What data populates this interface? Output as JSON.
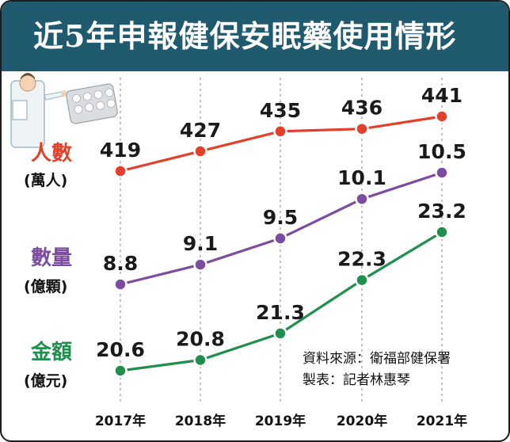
{
  "title": "近5年申報健保安眠藥使用情形",
  "chart_data": {
    "type": "line",
    "x": [
      "2017年",
      "2018年",
      "2019年",
      "2020年",
      "2021年"
    ],
    "series": [
      {
        "name": "人數",
        "unit": "(萬人)",
        "color": "#e2402a",
        "values": [
          419,
          427,
          435,
          436,
          441
        ],
        "labels": [
          "419",
          "427",
          "435",
          "436",
          "441"
        ]
      },
      {
        "name": "數量",
        "unit": "(億顆)",
        "color": "#7c4ca0",
        "values": [
          8.8,
          9.1,
          9.5,
          10.1,
          10.5
        ],
        "labels": [
          "8.8",
          "9.1",
          "9.5",
          "10.1",
          "10.5"
        ]
      },
      {
        "name": "金額",
        "unit": "(億元)",
        "color": "#1f8f4e",
        "values": [
          20.6,
          20.8,
          21.3,
          22.3,
          23.2
        ],
        "labels": [
          "20.6",
          "20.8",
          "21.3",
          "22.3",
          "23.2"
        ]
      }
    ],
    "grid": "vertical dashed lines at each year"
  },
  "source": "資料來源：衛福部健保署",
  "credit": "製表：記者林惠琴",
  "colors": {
    "title_bar": "#1f5a6f",
    "frame": "#1d1d1d",
    "gridline": "#9a9a9a"
  },
  "icons": [
    "doctor-illustration",
    "pill-blister-pack"
  ]
}
